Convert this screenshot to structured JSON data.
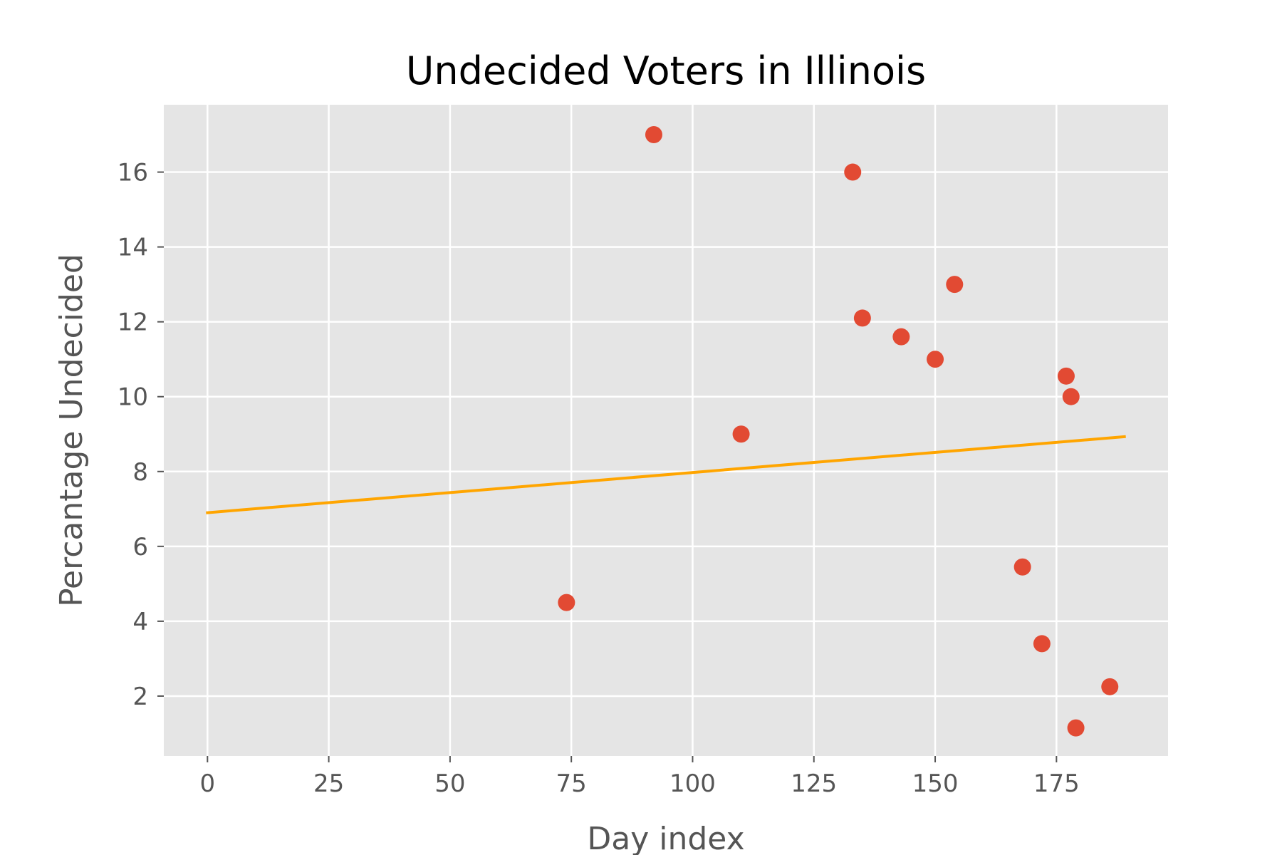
{
  "chart_data": {
    "type": "scatter",
    "title": "Undecided Voters in Illinois",
    "xlabel": "Day index",
    "ylabel": "Percantage Undecided",
    "xlim": [
      -9,
      198
    ],
    "ylim": [
      0.4,
      17.8
    ],
    "xticks": [
      0,
      25,
      50,
      75,
      100,
      125,
      150,
      175
    ],
    "yticks": [
      2,
      4,
      6,
      8,
      10,
      12,
      14,
      16
    ],
    "grid": true,
    "legend": "none",
    "series": [
      {
        "type": "scatter",
        "color": "#e24a33",
        "points": [
          {
            "x": 74,
            "y": 4.5
          },
          {
            "x": 92,
            "y": 17.0
          },
          {
            "x": 110,
            "y": 9.0
          },
          {
            "x": 133,
            "y": 16.0
          },
          {
            "x": 135,
            "y": 12.1
          },
          {
            "x": 143,
            "y": 11.6
          },
          {
            "x": 150,
            "y": 11.0
          },
          {
            "x": 154,
            "y": 13.0
          },
          {
            "x": 168,
            "y": 5.45
          },
          {
            "x": 172,
            "y": 3.4
          },
          {
            "x": 177,
            "y": 10.55
          },
          {
            "x": 178,
            "y": 10.0
          },
          {
            "x": 179,
            "y": 1.15
          },
          {
            "x": 186,
            "y": 2.25
          }
        ]
      },
      {
        "type": "line",
        "color": "#ffa500",
        "points": [
          {
            "x": 0,
            "y": 6.9
          },
          {
            "x": 189,
            "y": 8.93
          }
        ]
      }
    ]
  }
}
